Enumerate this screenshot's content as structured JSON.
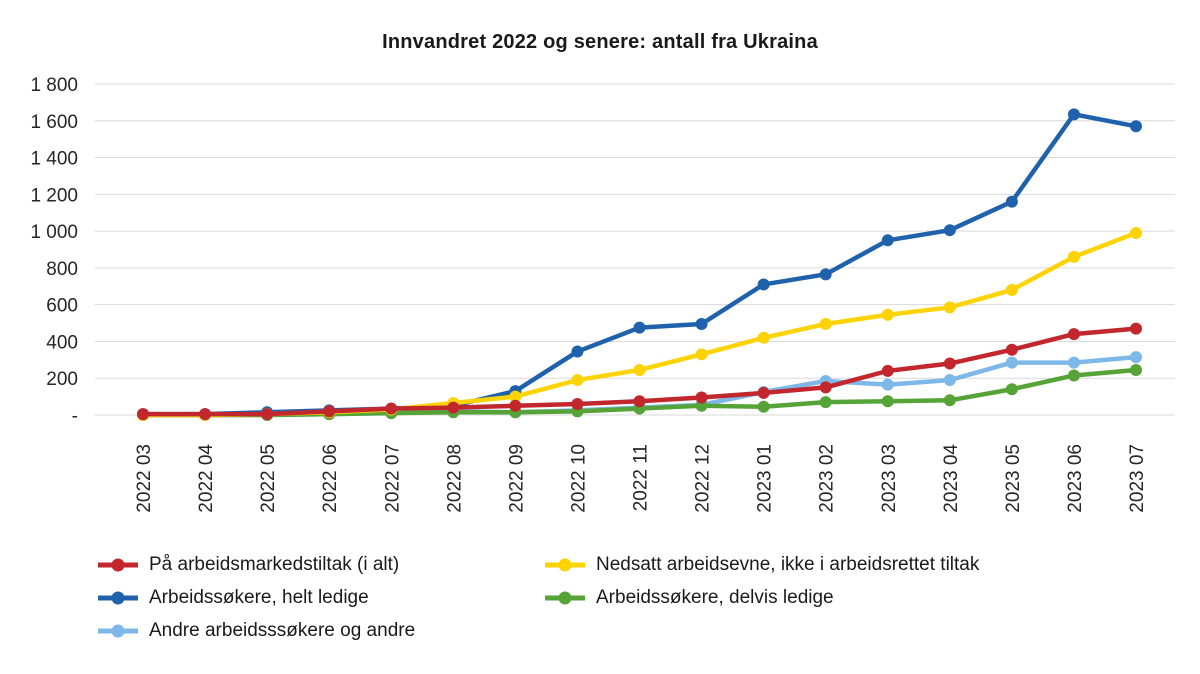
{
  "chart_data": {
    "type": "line",
    "title": "Innvandret 2022 og senere: antall fra Ukraina",
    "categories": [
      "2022 03",
      "2022 04",
      "2022 05",
      "2022 06",
      "2022 07",
      "2022 08",
      "2022 09",
      "2022 10",
      "2022 11",
      "2022 12",
      "2023 01",
      "2023 02",
      "2023 03",
      "2023 04",
      "2023 05",
      "2023 06",
      "2023 07"
    ],
    "series": [
      {
        "name": "På arbeidsmarkedstiltak (i alt)",
        "color": "#c1272d",
        "values": [
          5,
          5,
          5,
          20,
          35,
          40,
          50,
          60,
          75,
          95,
          120,
          150,
          240,
          280,
          355,
          440,
          470
        ]
      },
      {
        "name": "Arbeidssøkere, helt ledige",
        "color": "#1f62ab",
        "values": [
          5,
          5,
          15,
          25,
          35,
          50,
          130,
          345,
          475,
          495,
          710,
          765,
          950,
          1005,
          1160,
          1635,
          1570
        ]
      },
      {
        "name": "Andre arbeidsssøkere og andre",
        "color": "#7db8e8",
        "values": [
          0,
          0,
          0,
          5,
          10,
          20,
          15,
          25,
          40,
          55,
          125,
          185,
          165,
          190,
          285,
          285,
          315
        ]
      },
      {
        "name": "Nedsatt arbeidsevne, ikke i arbeidsrettet tiltak",
        "color": "#fdd304",
        "values": [
          0,
          0,
          5,
          15,
          30,
          65,
          100,
          190,
          245,
          330,
          420,
          495,
          545,
          585,
          680,
          860,
          990
        ]
      },
      {
        "name": "Arbeidssøkere, delvis ledige",
        "color": "#56a338",
        "values": [
          0,
          0,
          0,
          5,
          10,
          15,
          15,
          20,
          35,
          50,
          45,
          70,
          75,
          80,
          140,
          215,
          245
        ]
      }
    ],
    "ylim": [
      0,
      1800
    ],
    "ytick_step": 200,
    "ytick_labels": [
      "-",
      "200",
      "400",
      "600",
      "800",
      "1 000",
      "1 200",
      "1 400",
      "1 600",
      "1 800"
    ],
    "legend_order": [
      0,
      3,
      1,
      4,
      2
    ],
    "draw_order": [
      2,
      4,
      1,
      3,
      0
    ],
    "grid": "horizontal",
    "legend_position": "bottom",
    "xlabel": "",
    "ylabel": ""
  },
  "colors": {
    "gridline": "#d9d9d9",
    "axis_text": "#262626",
    "background": "#ffffff"
  }
}
